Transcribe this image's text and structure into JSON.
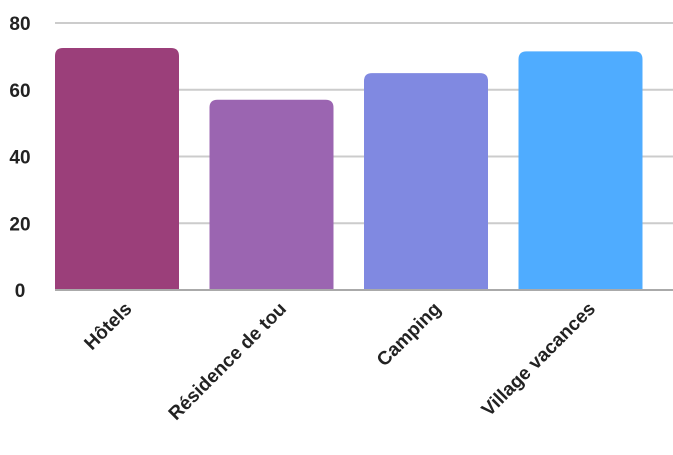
{
  "chart_data": {
    "type": "bar",
    "categories": [
      "Hôtels",
      "Résidence de tou",
      "Camping",
      "Village vacances"
    ],
    "values": [
      72.5,
      57,
      65,
      71.5
    ],
    "colors": [
      "#9b3f7a",
      "#9b65b1",
      "#8089e1",
      "#4facff"
    ],
    "title": "",
    "xlabel": "",
    "ylabel": "",
    "ylim": [
      0,
      80
    ],
    "yticks": [
      0,
      20,
      40,
      60,
      80
    ],
    "grid": true,
    "legend": "none"
  }
}
